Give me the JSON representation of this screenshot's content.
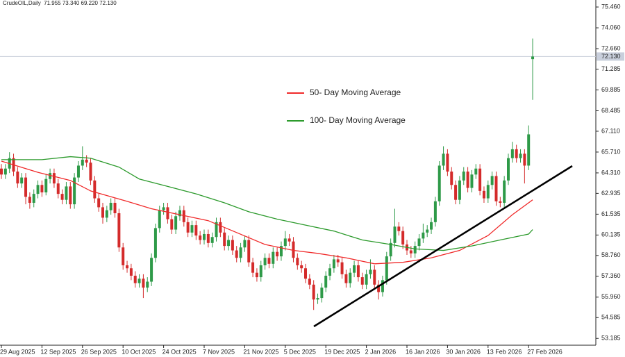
{
  "chart_data": {
    "type": "candlestick",
    "header": "CrudeOIL,Daily  71.955 73.340 69.220 72.130",
    "categories": [
      "29 Aug 2025",
      null,
      null,
      null,
      null,
      null,
      null,
      null,
      null,
      null,
      "12 Sep 2025",
      null,
      null,
      null,
      null,
      null,
      null,
      null,
      null,
      null,
      "26 Sep 2025",
      null,
      null,
      null,
      null,
      null,
      null,
      null,
      null,
      null,
      "10 Oct 2025",
      null,
      null,
      null,
      null,
      null,
      null,
      null,
      null,
      null,
      "24 Oct 2025",
      null,
      null,
      null,
      null,
      null,
      null,
      null,
      null,
      null,
      "7 Nov 2025",
      null,
      null,
      null,
      null,
      null,
      null,
      null,
      null,
      null,
      "21 Nov 2025",
      null,
      null,
      null,
      null,
      null,
      null,
      null,
      null,
      null,
      "5 Dec 2025",
      null,
      null,
      null,
      null,
      null,
      null,
      null,
      null,
      null,
      "19 Dec 2025",
      null,
      null,
      null,
      null,
      null,
      null,
      null,
      null,
      null,
      "2 Jan 2026",
      null,
      null,
      null,
      null,
      null,
      null,
      null,
      null,
      null,
      "16 Jan 2026",
      null,
      null,
      null,
      null,
      null,
      null,
      null,
      null,
      null,
      "30 Jan 2026",
      null,
      null,
      null,
      null,
      null,
      null,
      null,
      null,
      null,
      "13 Feb 2026",
      null,
      null,
      null,
      null,
      null,
      null,
      null,
      null,
      null,
      "27 Feb 2026",
      null
    ],
    "open": [
      64.6,
      64.2,
      64.6,
      65.3,
      64.4,
      63.6,
      64.0,
      62.7,
      62.3,
      62.9,
      63.5,
      63.0,
      63.9,
      64.3,
      63.6,
      62.9,
      62.5,
      63.4,
      62.2,
      64.0,
      64.8,
      65.2,
      65.0,
      63.8,
      62.6,
      62.0,
      61.3,
      61.8,
      62.3,
      61.6,
      59.3,
      58.1,
      57.9,
      57.4,
      56.9,
      57.2,
      56.6,
      57.0,
      58.6,
      60.6,
      61.8,
      62.0,
      61.2,
      60.5,
      61.4,
      61.8,
      61.0,
      60.3,
      60.8,
      60.1,
      59.8,
      60.2,
      59.6,
      60.0,
      61.0,
      60.3,
      59.4,
      59.8,
      59.1,
      58.6,
      59.3,
      59.8,
      58.3,
      57.6,
      57.3,
      58.1,
      58.6,
      58.2,
      59.0,
      58.7,
      59.4,
      59.9,
      59.7,
      58.6,
      58.1,
      57.9,
      57.2,
      56.8,
      55.8,
      55.9,
      56.6,
      57.4,
      57.9,
      58.5,
      58.3,
      57.5,
      56.9,
      57.6,
      58.1,
      57.3,
      56.8,
      57.5,
      57.8,
      56.8,
      56.3,
      57.1,
      58.7,
      59.6,
      60.7,
      60.4,
      59.5,
      59.1,
      58.9,
      59.4,
      59.9,
      60.3,
      60.5,
      61.0,
      62.4,
      64.8,
      65.6,
      64.4,
      63.5,
      62.5,
      63.8,
      64.4,
      63.3,
      64.2,
      64.6,
      63.1,
      62.6,
      63.5,
      64.1,
      62.4,
      62.3,
      63.8,
      65.3,
      65.9,
      65.3,
      65.6,
      64.8,
      71.955
    ],
    "high": [
      64.9,
      64.9,
      65.7,
      65.6,
      64.7,
      64.3,
      64.3,
      63.0,
      63.2,
      63.8,
      63.8,
      64.2,
      64.6,
      64.6,
      63.9,
      63.2,
      63.7,
      63.7,
      64.3,
      65.1,
      66.1,
      65.5,
      65.3,
      64.1,
      62.9,
      62.3,
      62.1,
      62.6,
      62.6,
      61.9,
      59.6,
      58.4,
      58.2,
      57.7,
      57.5,
      57.5,
      57.3,
      58.9,
      60.9,
      62.1,
      62.3,
      62.3,
      61.5,
      61.7,
      62.1,
      62.1,
      61.3,
      61.1,
      61.1,
      60.4,
      60.5,
      60.5,
      60.3,
      61.3,
      61.3,
      60.6,
      60.1,
      60.1,
      59.4,
      59.6,
      60.1,
      60.1,
      58.6,
      57.9,
      58.4,
      58.9,
      58.9,
      59.3,
      59.3,
      59.7,
      60.4,
      60.2,
      60.0,
      58.9,
      58.4,
      58.2,
      57.5,
      57.1,
      56.2,
      56.9,
      57.7,
      58.2,
      58.8,
      58.8,
      58.6,
      57.8,
      57.9,
      58.4,
      58.4,
      57.6,
      57.8,
      58.5,
      58.1,
      57.1,
      57.4,
      59.0,
      59.9,
      61.9,
      61.0,
      60.7,
      59.8,
      59.4,
      59.7,
      60.2,
      60.9,
      60.8,
      61.3,
      62.7,
      65.1,
      66.1,
      65.9,
      64.7,
      63.8,
      64.1,
      64.7,
      64.7,
      64.5,
      64.9,
      64.9,
      63.4,
      63.8,
      64.4,
      64.4,
      62.7,
      64.1,
      65.6,
      66.4,
      66.2,
      65.9,
      65.9,
      67.5,
      73.34
    ],
    "low": [
      63.9,
      63.9,
      64.3,
      64.1,
      63.3,
      63.3,
      62.2,
      61.9,
      62.0,
      62.6,
      62.7,
      62.8,
      63.6,
      63.3,
      62.6,
      62.2,
      62.2,
      61.9,
      61.9,
      63.7,
      64.5,
      64.7,
      63.5,
      62.3,
      61.7,
      60.9,
      61.0,
      61.5,
      61.3,
      59.0,
      57.8,
      57.6,
      57.1,
      56.6,
      56.6,
      55.9,
      56.3,
      56.7,
      58.3,
      60.3,
      61.5,
      60.9,
      60.2,
      60.2,
      61.1,
      60.7,
      60.0,
      60.0,
      59.8,
      59.5,
      59.5,
      59.3,
      59.3,
      59.7,
      60.0,
      59.1,
      59.1,
      58.8,
      58.3,
      58.3,
      59.0,
      58.0,
      57.3,
      57.0,
      57.0,
      57.8,
      57.9,
      57.9,
      58.4,
      58.4,
      59.1,
      59.4,
      58.3,
      57.8,
      57.6,
      56.9,
      56.5,
      55.1,
      55.5,
      55.6,
      56.3,
      57.1,
      57.6,
      58.0,
      57.2,
      56.6,
      56.6,
      57.3,
      57.0,
      56.5,
      56.5,
      57.2,
      56.5,
      55.8,
      56.0,
      56.8,
      58.4,
      59.3,
      60.1,
      59.2,
      58.8,
      58.6,
      58.6,
      59.1,
      59.6,
      60.0,
      60.2,
      60.7,
      62.1,
      64.5,
      64.1,
      63.2,
      62.2,
      62.2,
      63.5,
      63.0,
      63.0,
      63.9,
      62.8,
      62.3,
      62.3,
      63.2,
      62.1,
      62.0,
      62.0,
      63.5,
      65.0,
      65.0,
      65.0,
      63.6,
      64.5,
      69.22
    ],
    "close": [
      64.2,
      64.6,
      65.3,
      64.4,
      63.6,
      64.0,
      62.7,
      62.3,
      62.9,
      63.5,
      63.0,
      63.9,
      64.3,
      63.6,
      62.9,
      62.5,
      63.4,
      62.2,
      64.0,
      64.8,
      65.2,
      65.0,
      63.8,
      62.6,
      62.0,
      61.3,
      61.8,
      62.3,
      61.6,
      59.3,
      58.1,
      57.9,
      57.4,
      56.9,
      57.2,
      56.6,
      57.0,
      58.6,
      60.6,
      61.8,
      62.0,
      61.2,
      60.5,
      61.4,
      61.8,
      61.0,
      60.3,
      60.8,
      60.1,
      59.8,
      60.2,
      59.6,
      60.0,
      61.0,
      60.3,
      59.4,
      59.8,
      59.1,
      58.6,
      59.3,
      59.8,
      58.3,
      57.6,
      57.3,
      58.1,
      58.6,
      58.2,
      59.0,
      58.7,
      59.4,
      59.9,
      59.7,
      58.6,
      58.1,
      57.9,
      57.2,
      56.8,
      55.8,
      55.9,
      56.6,
      57.4,
      57.9,
      58.5,
      58.3,
      57.5,
      56.9,
      57.6,
      58.1,
      57.3,
      56.8,
      57.5,
      57.8,
      56.8,
      56.3,
      57.1,
      58.7,
      59.6,
      60.7,
      60.4,
      59.5,
      59.1,
      58.9,
      59.4,
      59.9,
      60.3,
      60.5,
      61.0,
      62.4,
      64.8,
      65.6,
      64.4,
      63.5,
      62.5,
      63.8,
      64.4,
      63.3,
      64.2,
      64.6,
      63.1,
      62.6,
      63.5,
      64.1,
      62.4,
      62.3,
      63.8,
      65.3,
      65.9,
      65.3,
      65.6,
      64.8,
      66.9,
      72.13
    ],
    "up_color": "#2e9a48",
    "down_color": "#d42b2b",
    "series": [
      {
        "name": "50- Day Moving Average",
        "color": "#f02a2a",
        "x": [
          0,
          9,
          17,
          22,
          31,
          37,
          44,
          51,
          58,
          65,
          72,
          78,
          85,
          92,
          99,
          106,
          113,
          120,
          126,
          131
        ],
        "values": [
          65.1,
          64.35,
          63.8,
          63.1,
          62.4,
          61.9,
          61.5,
          61.1,
          60.3,
          59.5,
          59.1,
          58.9,
          58.6,
          58.2,
          58.3,
          58.6,
          59.1,
          60.1,
          61.5,
          62.5
        ]
      },
      {
        "name": "100- Day Moving Average",
        "color": "#2c9a2c",
        "x": [
          0,
          10,
          17,
          22,
          29,
          34,
          41,
          48,
          55,
          61,
          68,
          75,
          82,
          89,
          96,
          102,
          109,
          116,
          123,
          130,
          131
        ],
        "values": [
          65.2,
          65.2,
          65.4,
          65.3,
          64.7,
          63.9,
          63.4,
          62.9,
          62.3,
          61.7,
          61.2,
          60.8,
          60.4,
          59.8,
          59.5,
          59.2,
          59.1,
          59.4,
          59.8,
          60.2,
          60.5
        ]
      }
    ],
    "last_price": {
      "value": 72.13,
      "label": "72.130"
    },
    "ylim": [
      52.73,
      75.93
    ],
    "yticks": [
      {
        "value": 75.46,
        "label": "75.460"
      },
      {
        "value": 74.06,
        "label": "74.060"
      },
      {
        "value": 72.66,
        "label": "72.660"
      },
      71.285,
      69.885,
      68.485,
      {
        "value": 67.11,
        "label": "67.110"
      },
      {
        "value": 65.71,
        "label": "65.710"
      },
      {
        "value": 64.31,
        "label": "64.310"
      },
      62.935,
      61.535,
      60.135,
      {
        "value": 58.76,
        "label": "58.760"
      },
      {
        "value": 57.36,
        "label": "57.360"
      },
      {
        "value": 55.96,
        "label": "55.960"
      },
      54.585,
      53.185
    ]
  }
}
